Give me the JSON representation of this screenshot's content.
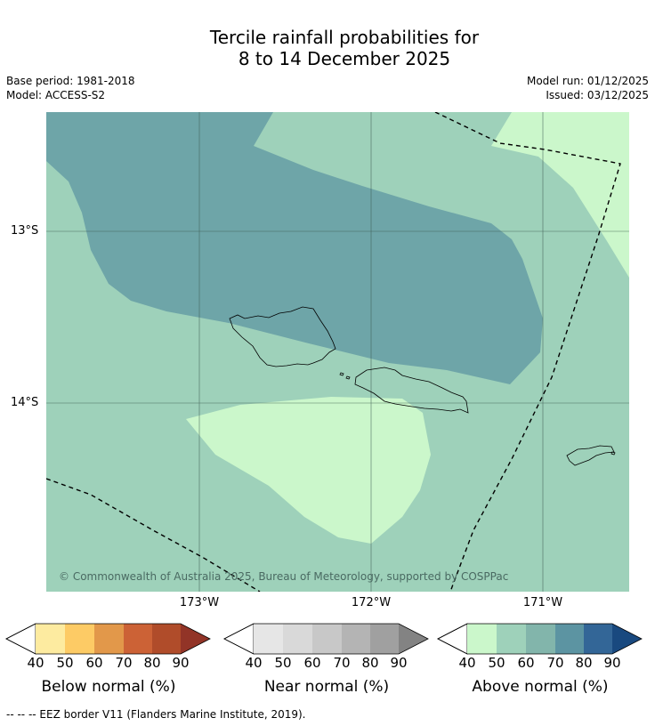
{
  "title": {
    "line1": "Tercile rainfall probabilities for",
    "line2": "8 to 14 December 2025"
  },
  "meta": {
    "base_period": "Base period: 1981-2018",
    "model": "Model: ACCESS-S2",
    "model_run": "Model run: 01/12/2025",
    "issued": "Issued: 03/12/2025"
  },
  "map": {
    "latitude_labels": [
      "13°S",
      "14°S"
    ],
    "longitude_labels": [
      "173°W",
      "172°W",
      "171°W"
    ],
    "copyright": "© Commonwealth of Australia 2025, Bureau of Meteorology, supported by COSPPac",
    "colors": {
      "above_40": "#cbf7cb",
      "above_50": "#9ed1ba",
      "above_70": "#6ea5a8",
      "gridline": "#3c5a50",
      "border": "#000000"
    }
  },
  "legend": [
    {
      "title": "Below normal (%)",
      "values": [
        "40",
        "50",
        "60",
        "70",
        "80",
        "90"
      ],
      "colors": [
        "#fdeba0",
        "#fdcb65",
        "#e2984a",
        "#cc6236",
        "#b04c2a",
        "#923427"
      ]
    },
    {
      "title": "Near normal (%)",
      "values": [
        "40",
        "50",
        "60",
        "70",
        "80",
        "90"
      ],
      "colors": [
        "#e6e6e6",
        "#d9d9d9",
        "#c8c8c8",
        "#b4b4b4",
        "#a0a0a0",
        "#838383"
      ]
    },
    {
      "title": "Above normal (%)",
      "values": [
        "40",
        "50",
        "60",
        "70",
        "80",
        "90"
      ],
      "colors": [
        "#cbf7cb",
        "#9ed1ba",
        "#82b5ab",
        "#5c94a2",
        "#336697",
        "#19497f"
      ]
    }
  ],
  "footnote": "--  --  -- EEZ border V11 (Flanders Marine Institute, 2019)."
}
